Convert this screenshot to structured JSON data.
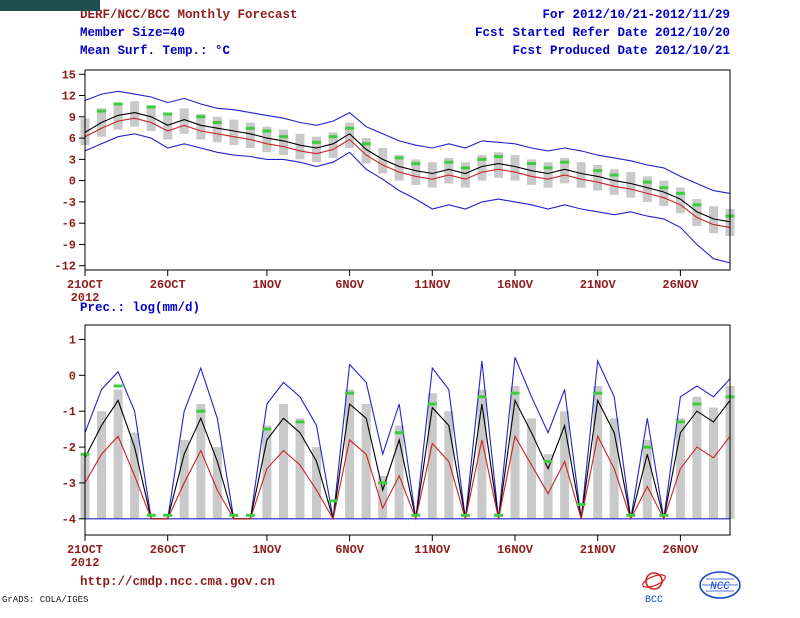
{
  "header": {
    "title": "DERF/NCC/BCC Monthly Forecast",
    "member_size": "Member Size=40",
    "for_range": "For 2012/10/21-2012/11/29",
    "fcst_started": "Fcst Started Refer Date 2012/10/20",
    "fcst_produced": "Fcst Produced Date 2012/10/21"
  },
  "footer": {
    "url": "http://cmdp.ncc.cma.gov.cn",
    "grads_credit": "GrADS: COLA/IGES",
    "logos": [
      {
        "label": "BCC"
      },
      {
        "label": "NCC"
      }
    ]
  },
  "colors": {
    "annotation": "#8f1d1d",
    "header_blue": "#0000c8",
    "line_blue": "#2222cc",
    "line_red": "#cc2222",
    "line_black": "#000000",
    "marker_green": "#3ecc3e",
    "bar_gray": "#c9c9c9",
    "taskbar": "#1d4f51",
    "logo_red": "#d42222",
    "logo_blue": "#1548c8"
  },
  "chart_data": [
    {
      "type": "line",
      "name": "temperature",
      "title": "Mean Surf. Temp.: °C",
      "ylabel": "°C",
      "ylim": [
        -12.6,
        15.6
      ],
      "yticks": [
        15,
        12,
        9,
        6,
        3,
        0,
        -3,
        -6,
        -9,
        -12
      ],
      "grid": false,
      "legend": "none",
      "n_days": 40,
      "xticks": [
        {
          "pos": 0,
          "label": "21OCT",
          "year": "2012"
        },
        {
          "pos": 5,
          "label": "26OCT"
        },
        {
          "pos": 11,
          "label": "1NOV"
        },
        {
          "pos": 16,
          "label": "6NOV"
        },
        {
          "pos": 21,
          "label": "11NOV"
        },
        {
          "pos": 26,
          "label": "16NOV"
        },
        {
          "pos": 31,
          "label": "21NOV"
        },
        {
          "pos": 36,
          "label": "26NOV"
        }
      ],
      "series": [
        {
          "name": "ensemble-max",
          "color": "blue",
          "values": [
            11.3,
            12.2,
            12.6,
            12.2,
            11.8,
            11.0,
            11.6,
            10.8,
            10.2,
            10.0,
            9.6,
            9.2,
            8.8,
            8.2,
            7.8,
            8.4,
            9.6,
            7.6,
            6.6,
            5.6,
            5.0,
            4.6,
            5.2,
            4.6,
            5.6,
            5.4,
            5.2,
            4.6,
            4.2,
            4.6,
            4.2,
            3.6,
            3.2,
            2.8,
            2.2,
            1.8,
            0.6,
            -0.4,
            -1.4,
            -1.8
          ]
        },
        {
          "name": "ensemble-min",
          "color": "blue",
          "values": [
            4.2,
            5.2,
            6.2,
            6.6,
            6.0,
            4.6,
            5.2,
            4.6,
            4.0,
            3.6,
            3.4,
            3.0,
            3.0,
            2.6,
            2.0,
            2.6,
            4.0,
            1.6,
            0.2,
            -1.4,
            -2.6,
            -4.0,
            -3.4,
            -4.0,
            -3.0,
            -2.6,
            -3.0,
            -3.4,
            -4.0,
            -3.4,
            -4.0,
            -4.4,
            -4.8,
            -4.4,
            -5.0,
            -5.4,
            -6.6,
            -9.0,
            -11.0,
            -11.6
          ]
        },
        {
          "name": "ensemble-median",
          "color": "black",
          "values": [
            6.8,
            8.2,
            9.2,
            9.6,
            9.0,
            7.8,
            8.6,
            7.8,
            7.4,
            7.0,
            6.6,
            6.0,
            5.6,
            5.0,
            4.6,
            5.2,
            6.6,
            4.4,
            3.0,
            2.0,
            1.4,
            1.0,
            1.6,
            1.0,
            2.0,
            2.4,
            2.0,
            1.4,
            1.0,
            1.6,
            1.0,
            0.6,
            0.0,
            -0.4,
            -1.0,
            -1.6,
            -2.6,
            -4.4,
            -5.4,
            -5.8
          ]
        },
        {
          "name": "ensemble-mean",
          "color": "red",
          "values": [
            6.2,
            7.4,
            8.4,
            8.8,
            8.2,
            7.0,
            7.8,
            7.0,
            6.6,
            6.2,
            5.8,
            5.2,
            4.8,
            4.2,
            3.8,
            4.4,
            5.8,
            3.6,
            2.2,
            1.2,
            0.6,
            0.2,
            0.8,
            0.2,
            1.2,
            1.6,
            1.2,
            0.6,
            0.2,
            0.8,
            0.2,
            -0.2,
            -0.8,
            -1.2,
            -1.8,
            -2.4,
            -3.4,
            -5.2,
            -6.2,
            -6.6
          ]
        }
      ],
      "bars": {
        "name": "ensemble-spread-bar",
        "top": [
          8.8,
          10.2,
          11.0,
          11.2,
          10.6,
          9.6,
          10.2,
          9.4,
          9.0,
          8.6,
          8.2,
          7.6,
          7.2,
          6.6,
          6.2,
          6.8,
          8.2,
          6.0,
          4.6,
          3.6,
          3.0,
          2.6,
          3.2,
          2.6,
          3.6,
          4.0,
          3.6,
          3.0,
          2.6,
          3.2,
          2.6,
          2.2,
          1.6,
          1.2,
          0.6,
          0.0,
          -1.0,
          -2.6,
          -3.6,
          -4.0
        ],
        "bottom": [
          5.0,
          6.2,
          7.2,
          7.6,
          7.0,
          5.8,
          6.6,
          5.8,
          5.4,
          5.0,
          4.6,
          4.0,
          3.6,
          3.0,
          2.6,
          3.2,
          4.6,
          2.4,
          1.0,
          0.0,
          -0.6,
          -1.0,
          -0.4,
          -1.0,
          0.0,
          0.4,
          0.0,
          -0.6,
          -1.0,
          -0.4,
          -1.0,
          -1.4,
          -2.0,
          -2.4,
          -3.0,
          -3.6,
          -4.6,
          -6.4,
          -7.4,
          -7.8
        ]
      },
      "markers": {
        "name": "observation",
        "values": [
          null,
          9.8,
          10.8,
          null,
          10.4,
          9.4,
          null,
          9.0,
          8.2,
          null,
          7.4,
          7.0,
          6.2,
          null,
          5.4,
          6.2,
          7.4,
          5.2,
          null,
          3.2,
          2.4,
          null,
          2.6,
          1.8,
          3.0,
          3.4,
          null,
          2.4,
          1.8,
          2.6,
          null,
          1.4,
          0.8,
          null,
          -0.2,
          -1.0,
          -1.8,
          -3.4,
          null,
          -5.0
        ]
      }
    },
    {
      "type": "line",
      "name": "precipitation",
      "title": "Prec.: log(mm/d)",
      "ylabel": "log(mm/d)",
      "ylim": [
        -4.45,
        1.4
      ],
      "yticks": [
        1,
        0,
        -1,
        -2,
        -3,
        -4
      ],
      "grid": false,
      "legend": "none",
      "n_days": 40,
      "xticks": [
        {
          "pos": 0,
          "label": "21OCT",
          "year": "2012"
        },
        {
          "pos": 5,
          "label": "26OCT"
        },
        {
          "pos": 11,
          "label": "1NOV"
        },
        {
          "pos": 16,
          "label": "6NOV"
        },
        {
          "pos": 21,
          "label": "11NOV"
        },
        {
          "pos": 26,
          "label": "16NOV"
        },
        {
          "pos": 31,
          "label": "21NOV"
        },
        {
          "pos": 36,
          "label": "26NOV"
        }
      ],
      "series": [
        {
          "name": "ensemble-max",
          "color": "blue",
          "values": [
            -1.6,
            -0.4,
            0.1,
            -1.0,
            -4.0,
            -4.0,
            -1.0,
            0.2,
            -1.2,
            -4.0,
            -4.0,
            -0.8,
            -0.2,
            -0.6,
            -1.4,
            -4.0,
            0.3,
            -0.2,
            -2.2,
            -0.8,
            -4.0,
            0.2,
            -0.4,
            -4.0,
            0.4,
            -4.0,
            0.5,
            -0.6,
            -1.6,
            -0.4,
            -4.0,
            0.4,
            -0.6,
            -4.0,
            -1.2,
            -4.0,
            -0.6,
            -0.3,
            -0.6,
            -0.1
          ]
        },
        {
          "name": "ensemble-min",
          "color": "blue",
          "values": [
            -4.0,
            -4.0,
            -4.0,
            -4.0,
            -4.0,
            -4.0,
            -4.0,
            -4.0,
            -4.0,
            -4.0,
            -4.0,
            -4.0,
            -4.0,
            -4.0,
            -4.0,
            -4.0,
            -4.0,
            -4.0,
            -4.0,
            -4.0,
            -4.0,
            -4.0,
            -4.0,
            -4.0,
            -4.0,
            -4.0,
            -4.0,
            -4.0,
            -4.0,
            -4.0,
            -4.0,
            -4.0,
            -4.0,
            -4.0,
            -4.0,
            -4.0,
            -4.0,
            -4.0,
            -4.0,
            -4.0
          ]
        },
        {
          "name": "ensemble-median",
          "color": "black",
          "values": [
            -2.3,
            -1.4,
            -0.7,
            -2.0,
            -4.0,
            -4.0,
            -2.2,
            -1.2,
            -2.4,
            -4.0,
            -4.0,
            -1.8,
            -1.2,
            -1.6,
            -2.4,
            -4.0,
            -0.8,
            -1.2,
            -3.2,
            -1.8,
            -4.0,
            -0.9,
            -1.4,
            -4.0,
            -0.8,
            -4.0,
            -0.7,
            -1.6,
            -2.6,
            -1.4,
            -4.0,
            -0.7,
            -1.6,
            -4.0,
            -2.2,
            -4.0,
            -1.6,
            -1.0,
            -1.3,
            -0.7
          ]
        },
        {
          "name": "ensemble-mean",
          "color": "red",
          "values": [
            -3.0,
            -2.2,
            -1.7,
            -2.8,
            -4.0,
            -4.0,
            -3.0,
            -2.1,
            -3.2,
            -4.0,
            -4.0,
            -2.6,
            -2.1,
            -2.5,
            -3.2,
            -4.0,
            -1.8,
            -2.2,
            -3.7,
            -2.8,
            -4.0,
            -1.9,
            -2.4,
            -4.0,
            -1.8,
            -4.0,
            -1.7,
            -2.5,
            -3.3,
            -2.4,
            -4.0,
            -1.7,
            -2.6,
            -4.0,
            -3.1,
            -4.0,
            -2.6,
            -2.0,
            -2.3,
            -1.7
          ]
        }
      ],
      "bars": {
        "name": "ensemble-spread-bar",
        "top": [
          -2.2,
          -1.0,
          -0.4,
          -1.6,
          null,
          null,
          -1.8,
          -0.8,
          -2.0,
          null,
          null,
          -1.4,
          -0.8,
          -1.2,
          -2.0,
          null,
          -0.4,
          -0.8,
          -2.8,
          -1.4,
          null,
          -0.5,
          -1.0,
          null,
          -0.4,
          null,
          -0.3,
          -1.2,
          -2.2,
          -1.0,
          null,
          -0.3,
          -1.2,
          null,
          -1.8,
          null,
          -1.2,
          -0.6,
          -0.9,
          -0.3
        ],
        "bottom": [
          -4.0,
          -4.0,
          -4.0,
          -4.0,
          -4.0,
          -4.0,
          -4.0,
          -4.0,
          -4.0,
          -4.0,
          -4.0,
          -4.0,
          -4.0,
          -4.0,
          -4.0,
          -4.0,
          -4.0,
          -4.0,
          -4.0,
          -4.0,
          -4.0,
          -4.0,
          -4.0,
          -4.0,
          -4.0,
          -4.0,
          -4.0,
          -4.0,
          -4.0,
          -4.0,
          -4.0,
          -4.0,
          -4.0,
          -4.0,
          -4.0,
          -4.0,
          -4.0,
          -4.0,
          -4.0,
          -4.0
        ]
      },
      "markers": {
        "name": "observation",
        "values": [
          -2.2,
          null,
          -0.3,
          null,
          -3.9,
          -3.9,
          null,
          -1.0,
          null,
          -3.9,
          -3.9,
          -1.5,
          null,
          -1.3,
          null,
          -3.5,
          -0.5,
          null,
          -3.0,
          -1.6,
          -3.9,
          -0.8,
          null,
          -3.9,
          -0.6,
          -3.9,
          -0.5,
          null,
          -2.4,
          null,
          -3.6,
          -0.5,
          null,
          -3.9,
          -2.0,
          -3.9,
          -1.3,
          -0.8,
          null,
          -0.6
        ]
      }
    }
  ]
}
